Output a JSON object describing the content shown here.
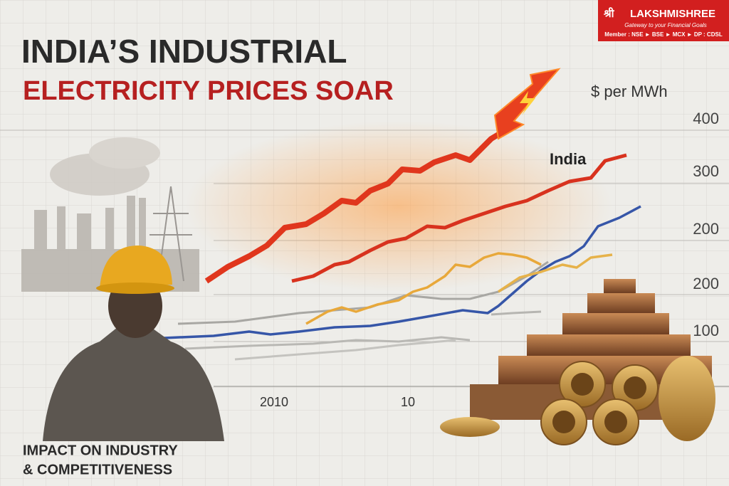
{
  "header": {
    "title_line1": "INDIA’S INDUSTRIAL",
    "title_line2": "ELECTRICITY PRICES SOAR"
  },
  "logo": {
    "script": "श्री",
    "name": "LAKSHMISHREE",
    "tagline": "Gateway to your Financial Goals",
    "membership": "Member : NSE ► BSE ► MCX ► DP : CDSL"
  },
  "axis": {
    "unit": "$ per MWh",
    "y_labels": [
      "400",
      "300",
      "200",
      "200",
      "100"
    ],
    "x_labels": [
      "2010",
      "10"
    ]
  },
  "series_label": "India",
  "footer": {
    "line1": "IMPACT ON INDUSTRY",
    "line2": "& COMPETITIVENESS"
  }
}
